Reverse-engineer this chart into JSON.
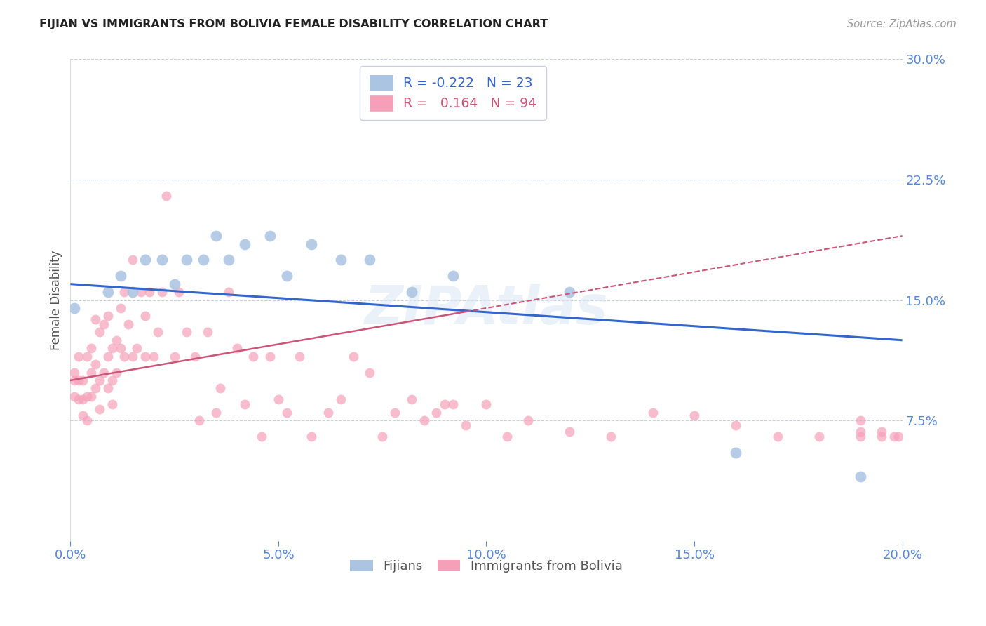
{
  "title": "FIJIAN VS IMMIGRANTS FROM BOLIVIA FEMALE DISABILITY CORRELATION CHART",
  "source": "Source: ZipAtlas.com",
  "xlabel_fijians": "Fijians",
  "xlabel_bolivia": "Immigrants from Bolivia",
  "ylabel": "Female Disability",
  "watermark": "ZIPAtlas",
  "xlim": [
    0.0,
    0.2
  ],
  "ylim": [
    0.0,
    0.3
  ],
  "fijians_R": -0.222,
  "fijians_N": 23,
  "bolivia_R": 0.164,
  "bolivia_N": 94,
  "fijian_color": "#aac4e2",
  "bolivia_color": "#f5a0b8",
  "fijian_line_color": "#3366cc",
  "bolivia_line_color": "#cc5577",
  "axis_color": "#5588dd",
  "grid_color": "#c8d0e0",
  "fijians_x": [
    0.001,
    0.009,
    0.012,
    0.015,
    0.018,
    0.022,
    0.025,
    0.028,
    0.032,
    0.035,
    0.038,
    0.042,
    0.048,
    0.052,
    0.058,
    0.065,
    0.072,
    0.082,
    0.092,
    0.1,
    0.12,
    0.16,
    0.19
  ],
  "fijians_y": [
    0.145,
    0.155,
    0.165,
    0.155,
    0.175,
    0.175,
    0.16,
    0.175,
    0.175,
    0.19,
    0.175,
    0.185,
    0.19,
    0.165,
    0.185,
    0.175,
    0.175,
    0.155,
    0.165,
    0.285,
    0.155,
    0.055,
    0.04
  ],
  "bolivia_x": [
    0.001,
    0.001,
    0.001,
    0.002,
    0.002,
    0.002,
    0.003,
    0.003,
    0.003,
    0.004,
    0.004,
    0.004,
    0.005,
    0.005,
    0.005,
    0.006,
    0.006,
    0.006,
    0.007,
    0.007,
    0.007,
    0.008,
    0.008,
    0.009,
    0.009,
    0.009,
    0.01,
    0.01,
    0.01,
    0.011,
    0.011,
    0.012,
    0.012,
    0.013,
    0.013,
    0.014,
    0.015,
    0.015,
    0.016,
    0.017,
    0.018,
    0.018,
    0.019,
    0.02,
    0.021,
    0.022,
    0.023,
    0.025,
    0.026,
    0.028,
    0.03,
    0.031,
    0.033,
    0.035,
    0.036,
    0.038,
    0.04,
    0.042,
    0.044,
    0.046,
    0.048,
    0.05,
    0.052,
    0.055,
    0.058,
    0.062,
    0.065,
    0.068,
    0.072,
    0.075,
    0.078,
    0.082,
    0.085,
    0.088,
    0.09,
    0.092,
    0.095,
    0.1,
    0.105,
    0.11,
    0.12,
    0.13,
    0.14,
    0.15,
    0.16,
    0.17,
    0.18,
    0.19,
    0.19,
    0.19,
    0.195,
    0.195,
    0.198,
    0.199
  ],
  "bolivia_y": [
    0.105,
    0.1,
    0.09,
    0.115,
    0.1,
    0.088,
    0.1,
    0.088,
    0.078,
    0.115,
    0.09,
    0.075,
    0.12,
    0.105,
    0.09,
    0.138,
    0.11,
    0.095,
    0.13,
    0.1,
    0.082,
    0.135,
    0.105,
    0.14,
    0.115,
    0.095,
    0.12,
    0.1,
    0.085,
    0.125,
    0.105,
    0.145,
    0.12,
    0.155,
    0.115,
    0.135,
    0.175,
    0.115,
    0.12,
    0.155,
    0.14,
    0.115,
    0.155,
    0.115,
    0.13,
    0.155,
    0.215,
    0.115,
    0.155,
    0.13,
    0.115,
    0.075,
    0.13,
    0.08,
    0.095,
    0.155,
    0.12,
    0.085,
    0.115,
    0.065,
    0.115,
    0.088,
    0.08,
    0.115,
    0.065,
    0.08,
    0.088,
    0.115,
    0.105,
    0.065,
    0.08,
    0.088,
    0.075,
    0.08,
    0.085,
    0.085,
    0.072,
    0.085,
    0.065,
    0.075,
    0.068,
    0.065,
    0.08,
    0.078,
    0.072,
    0.065,
    0.065,
    0.075,
    0.065,
    0.068,
    0.068,
    0.065,
    0.065,
    0.065
  ]
}
